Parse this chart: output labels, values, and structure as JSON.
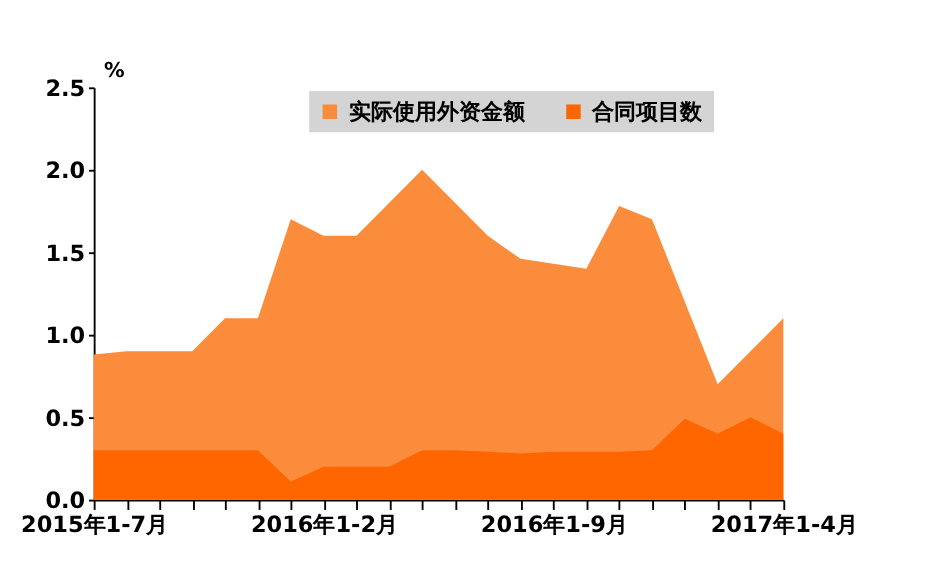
{
  "chart_data": {
    "type": "area",
    "ylabel": "%",
    "categories": [
      "2015年1-7月",
      null,
      null,
      null,
      null,
      null,
      null,
      "2016年1-2月",
      null,
      null,
      null,
      null,
      null,
      null,
      "2016年1-9月",
      null,
      null,
      null,
      null,
      null,
      null,
      "2017年1-4月"
    ],
    "series": [
      {
        "name": "实际使用外资金额",
        "color": "#fa8c3c",
        "values": [
          0.88,
          0.9,
          0.9,
          0.9,
          1.1,
          1.1,
          1.7,
          1.6,
          1.6,
          1.8,
          2.0,
          1.8,
          1.6,
          1.46,
          1.43,
          1.4,
          1.78,
          1.7,
          null,
          0.7,
          0.9,
          1.1
        ]
      },
      {
        "name": "合同项目数",
        "color": "#ff6600",
        "values": [
          0.3,
          0.3,
          0.3,
          0.3,
          0.3,
          0.3,
          0.11,
          0.2,
          0.2,
          0.2,
          0.3,
          0.3,
          0.29,
          0.28,
          0.29,
          0.29,
          0.29,
          0.3,
          0.49,
          0.4,
          0.5,
          0.4
        ]
      }
    ],
    "ylim": [
      0,
      2.5
    ],
    "yticks": [
      {
        "value": 0,
        "label": "0.0"
      },
      0.5,
      {
        "value": 1,
        "label": "1.0"
      },
      1.5,
      {
        "value": 2,
        "label": "2.0"
      },
      2.5
    ],
    "grid": false,
    "legend": "top"
  }
}
